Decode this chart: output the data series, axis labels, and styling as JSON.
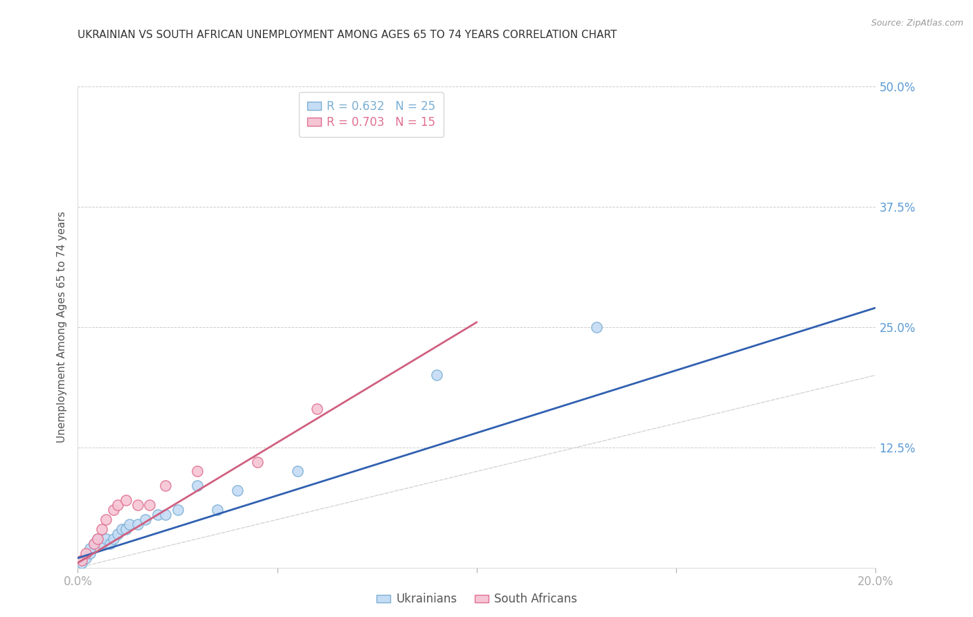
{
  "title": "UKRAINIAN VS SOUTH AFRICAN UNEMPLOYMENT AMONG AGES 65 TO 74 YEARS CORRELATION CHART",
  "source": "Source: ZipAtlas.com",
  "ylabel": "Unemployment Among Ages 65 to 74 years",
  "xlim": [
    0.0,
    0.2
  ],
  "ylim": [
    0.0,
    0.5
  ],
  "xticks": [
    0.0,
    0.05,
    0.1,
    0.15,
    0.2
  ],
  "yticks": [
    0.0,
    0.125,
    0.25,
    0.375,
    0.5
  ],
  "xticklabels": [
    "0.0%",
    "",
    "",
    "",
    "20.0%"
  ],
  "yticklabels_right": [
    "",
    "12.5%",
    "25.0%",
    "37.5%",
    "50.0%"
  ],
  "title_color": "#333333",
  "source_color": "#999999",
  "axis_label_color": "#555555",
  "tick_color_x": "#5b9bd5",
  "tick_color_y": "#5b9bd5",
  "background_color": "#ffffff",
  "grid_color": "#cccccc",
  "diagonal_line_color": "#d0d0d0",
  "ukrainian_color": "#c5dcf5",
  "ukrainian_edge_color": "#7bafd4",
  "sa_color": "#f5c5d5",
  "sa_edge_color": "#e07090",
  "ukrainian_line_color": "#3060b0",
  "sa_line_color": "#d06080",
  "legend_r_ukrainian": "R = 0.632",
  "legend_n_ukrainian": "N = 25",
  "legend_r_sa": "R = 0.703",
  "legend_n_sa": "N = 15",
  "ukrainians_label": "Ukrainians",
  "sa_label": "South Africans",
  "ukrainian_points_x": [
    0.001,
    0.002,
    0.003,
    0.003,
    0.004,
    0.005,
    0.006,
    0.007,
    0.008,
    0.009,
    0.01,
    0.011,
    0.012,
    0.013,
    0.015,
    0.017,
    0.02,
    0.022,
    0.025,
    0.03,
    0.035,
    0.04,
    0.055,
    0.09,
    0.13
  ],
  "ukrainian_points_y": [
    0.005,
    0.01,
    0.015,
    0.02,
    0.025,
    0.03,
    0.025,
    0.03,
    0.025,
    0.03,
    0.035,
    0.04,
    0.04,
    0.045,
    0.045,
    0.05,
    0.055,
    0.055,
    0.06,
    0.085,
    0.06,
    0.08,
    0.1,
    0.2,
    0.25
  ],
  "sa_points_x": [
    0.001,
    0.002,
    0.004,
    0.005,
    0.006,
    0.007,
    0.009,
    0.01,
    0.012,
    0.015,
    0.018,
    0.022,
    0.03,
    0.045,
    0.06
  ],
  "sa_points_y": [
    0.008,
    0.015,
    0.025,
    0.03,
    0.04,
    0.05,
    0.06,
    0.065,
    0.07,
    0.065,
    0.065,
    0.085,
    0.1,
    0.11,
    0.165
  ],
  "ukrainian_bubble_size": 120,
  "sa_bubble_size": 120,
  "ukrainian_line_x": [
    0.0,
    0.2
  ],
  "ukrainian_line_y": [
    0.01,
    0.27
  ],
  "sa_line_x": [
    0.0,
    0.1
  ],
  "sa_line_y": [
    0.005,
    0.255
  ]
}
